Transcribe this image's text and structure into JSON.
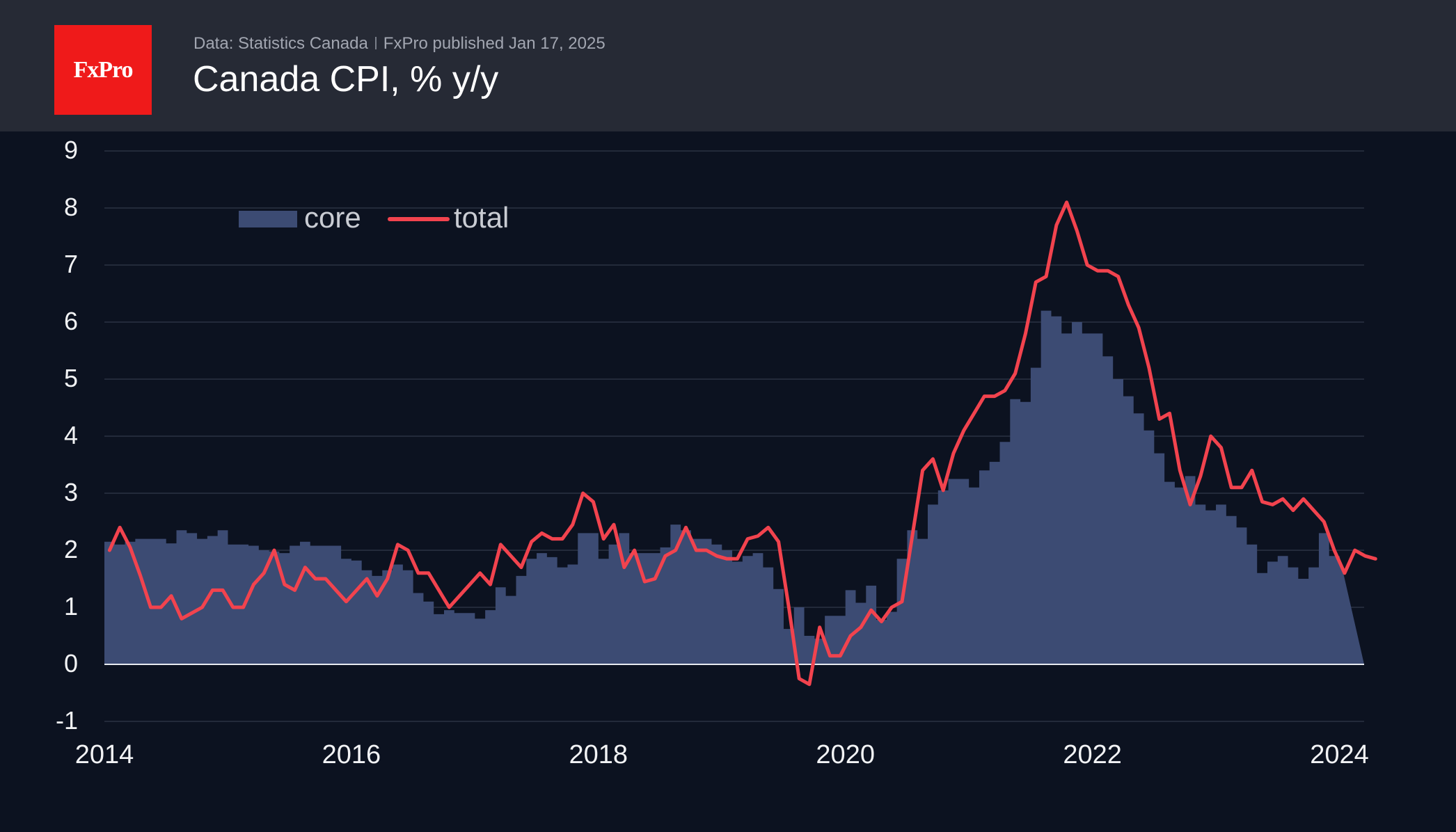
{
  "header": {
    "brand": "FxPro",
    "source": "Data: Statistics Canada",
    "published": "FxPro published Jan 17, 2025",
    "title": "Canada CPI, % y/y"
  },
  "colors": {
    "background": "#0c1220",
    "header": "#262a35",
    "core": "#3c4b73",
    "total": "#f2434e",
    "logo": "#ef1a1a"
  },
  "chart_data": {
    "type": "area",
    "title": "Canada CPI, % y/y",
    "ylim": [
      -1,
      9
    ],
    "yticks": [
      -1,
      0,
      1,
      2,
      3,
      4,
      5,
      6,
      7,
      8,
      9
    ],
    "xlim": [
      2014.0,
      2024.2
    ],
    "xticks": [
      2014,
      2016,
      2018,
      2020,
      2022,
      2024
    ],
    "legend": {
      "position": "top-left"
    },
    "series": [
      {
        "name": "core",
        "kind": "step-area",
        "start": 2014.0,
        "step_months": 1,
        "values": [
          2.15,
          2.1,
          2.15,
          2.2,
          2.2,
          2.2,
          2.12,
          2.35,
          2.3,
          2.2,
          2.25,
          2.35,
          2.1,
          2.1,
          2.08,
          2.0,
          1.98,
          1.95,
          2.08,
          2.15,
          2.08,
          2.08,
          2.08,
          1.85,
          1.82,
          1.65,
          1.55,
          1.65,
          1.75,
          1.65,
          1.25,
          1.1,
          0.88,
          0.95,
          0.9,
          0.9,
          0.8,
          0.95,
          1.35,
          1.2,
          1.55,
          1.85,
          1.95,
          1.88,
          1.7,
          1.75,
          2.3,
          2.3,
          1.85,
          2.1,
          2.3,
          1.95,
          1.95,
          1.95,
          2.05,
          2.45,
          2.35,
          2.2,
          2.2,
          2.1,
          2.0,
          1.8,
          1.9,
          1.95,
          1.7,
          1.32,
          0.62,
          1.0,
          0.5,
          0.45,
          0.85,
          0.85,
          1.3,
          1.08,
          1.38,
          0.78,
          0.92,
          1.85,
          2.35,
          2.2,
          2.8,
          3.05,
          3.25,
          3.25,
          3.1,
          3.4,
          3.55,
          3.9,
          4.65,
          4.6,
          5.2,
          6.2,
          6.1,
          5.8,
          6.0,
          5.8,
          5.8,
          5.4,
          5.0,
          4.7,
          4.4,
          4.1,
          3.7,
          3.2,
          3.1,
          3.3,
          2.8,
          2.7,
          2.8,
          2.6,
          2.4,
          2.1,
          1.6,
          1.8,
          1.9,
          1.7,
          1.5,
          1.7,
          2.3,
          1.9
        ]
      },
      {
        "name": "total",
        "kind": "line",
        "start": 2014.0,
        "step_months": 1,
        "values": [
          2.0,
          2.4,
          2.05,
          1.55,
          1.0,
          1.0,
          1.2,
          0.8,
          0.9,
          1.0,
          1.3,
          1.3,
          1.0,
          1.0,
          1.4,
          1.6,
          2.0,
          1.4,
          1.3,
          1.7,
          1.5,
          1.5,
          1.3,
          1.1,
          1.3,
          1.5,
          1.2,
          1.5,
          2.1,
          2.0,
          1.6,
          1.6,
          1.3,
          1.0,
          1.2,
          1.4,
          1.6,
          1.4,
          2.1,
          1.9,
          1.7,
          2.15,
          2.3,
          2.2,
          2.2,
          2.45,
          3.0,
          2.85,
          2.2,
          2.45,
          1.7,
          2.0,
          1.45,
          1.5,
          1.9,
          2.0,
          2.4,
          2.0,
          2.0,
          1.9,
          1.85,
          1.85,
          2.2,
          2.25,
          2.4,
          2.15,
          1.0,
          -0.25,
          -0.35,
          0.65,
          0.15,
          0.15,
          0.5,
          0.65,
          0.95,
          0.75,
          1.0,
          1.1,
          2.25,
          3.4,
          3.6,
          3.05,
          3.7,
          4.1,
          4.4,
          4.7,
          4.7,
          4.8,
          5.1,
          5.8,
          6.7,
          6.8,
          7.7,
          8.1,
          7.6,
          7.0,
          6.9,
          6.9,
          6.8,
          6.3,
          5.9,
          5.2,
          4.3,
          4.4,
          3.4,
          2.8,
          3.3,
          4.0,
          3.8,
          3.1,
          3.1,
          3.4,
          2.85,
          2.8,
          2.9,
          2.7,
          2.9,
          2.7,
          2.5,
          2.0,
          1.6,
          2.0,
          1.9,
          1.85
        ]
      }
    ]
  }
}
